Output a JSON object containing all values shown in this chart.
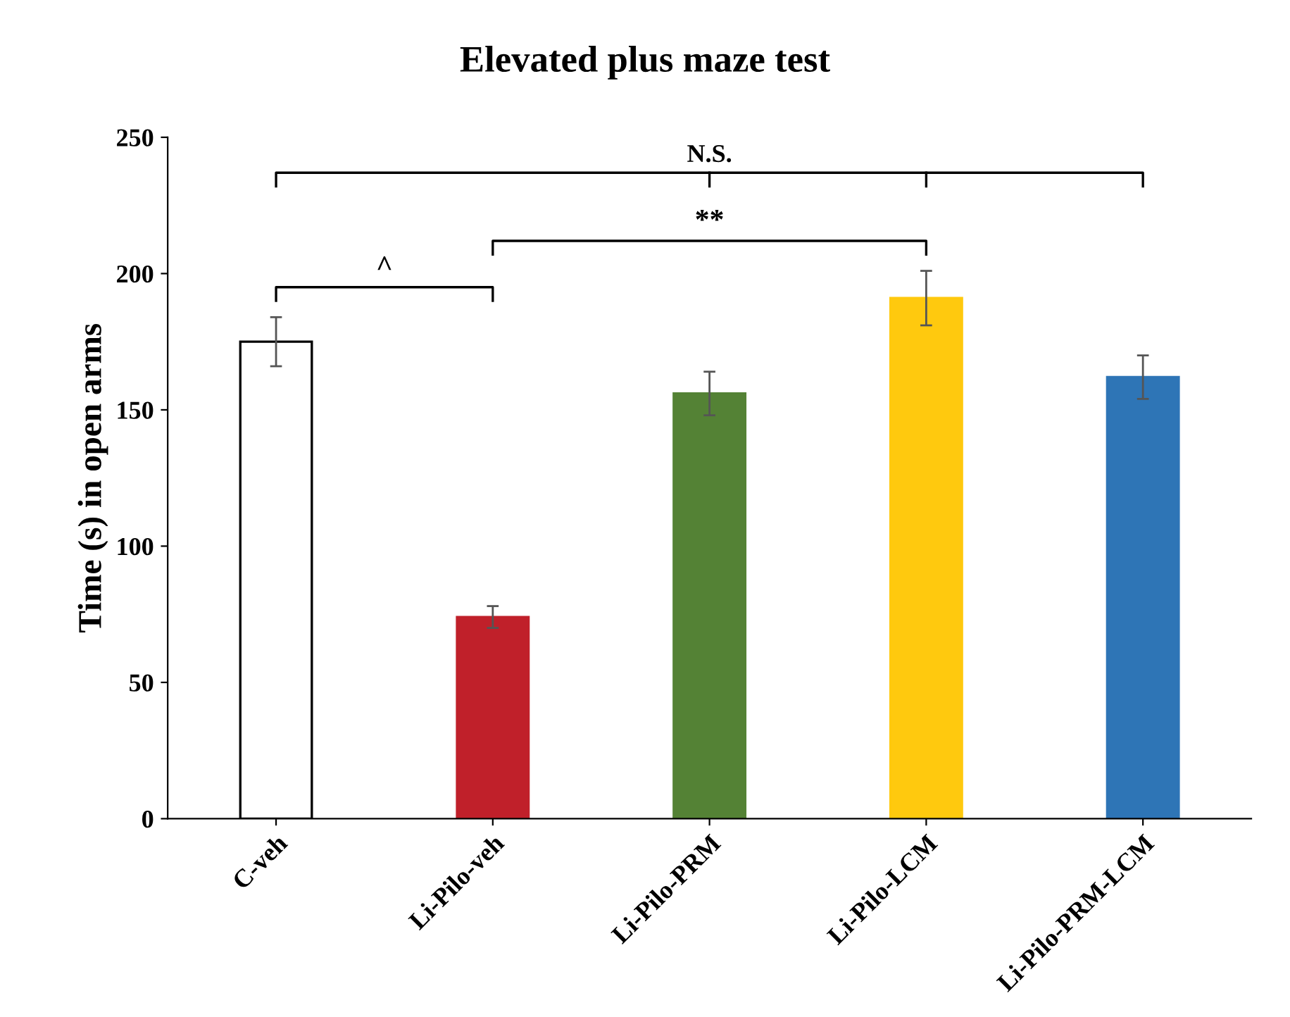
{
  "chart_data": {
    "type": "bar",
    "title": "Elevated plus maze test",
    "ylabel": "Time (s) in open arms",
    "categories": [
      "C-veh",
      "Li-Pilo-veh",
      "Li-Pilo-PRM",
      "Li-Pilo-LCM",
      "Li-Pilo-PRM-LCM"
    ],
    "values": [
      175,
      74,
      156,
      191,
      162
    ],
    "errors": [
      9,
      4,
      8,
      10,
      8
    ],
    "colors": [
      "#ffffff",
      "#c0202a",
      "#548235",
      "#ffc90e",
      "#2e75b6"
    ],
    "ylim": [
      0,
      250
    ],
    "yticks": [
      0,
      50,
      100,
      150,
      200,
      250
    ],
    "grid": false,
    "annotations": [
      "N.S.",
      "**",
      "^"
    ]
  }
}
